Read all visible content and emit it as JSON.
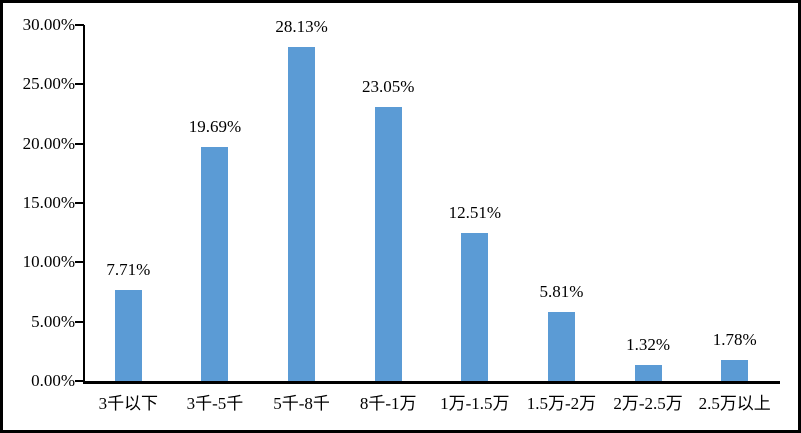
{
  "chart": {
    "bar_color": "#5B9BD5",
    "axis_color": "#000000",
    "background_color": "#FFFFFF",
    "border_color": "#000000"
  },
  "chart_data": {
    "type": "bar",
    "title": "",
    "xlabel": "",
    "ylabel": "",
    "categories": [
      "3千以下",
      "3千-5千",
      "5千-8千",
      "8千-1万",
      "1万-1.5万",
      "1.5万-2万",
      "2万-2.5万",
      "2.5万以上"
    ],
    "values": [
      7.71,
      19.69,
      28.13,
      23.05,
      12.51,
      5.81,
      1.32,
      1.78
    ],
    "value_labels": [
      "7.71%",
      "19.69%",
      "28.13%",
      "23.05%",
      "12.51%",
      "5.81%",
      "1.32%",
      "1.78%"
    ],
    "y_ticks": [
      "30.00%",
      "25.00%",
      "20.00%",
      "15.00%",
      "10.00%",
      "5.00%",
      "0.00%"
    ],
    "y_tick_values": [
      30,
      25,
      20,
      15,
      10,
      5,
      0
    ],
    "ylim": [
      0,
      30
    ],
    "grid": false,
    "legend": "none"
  }
}
